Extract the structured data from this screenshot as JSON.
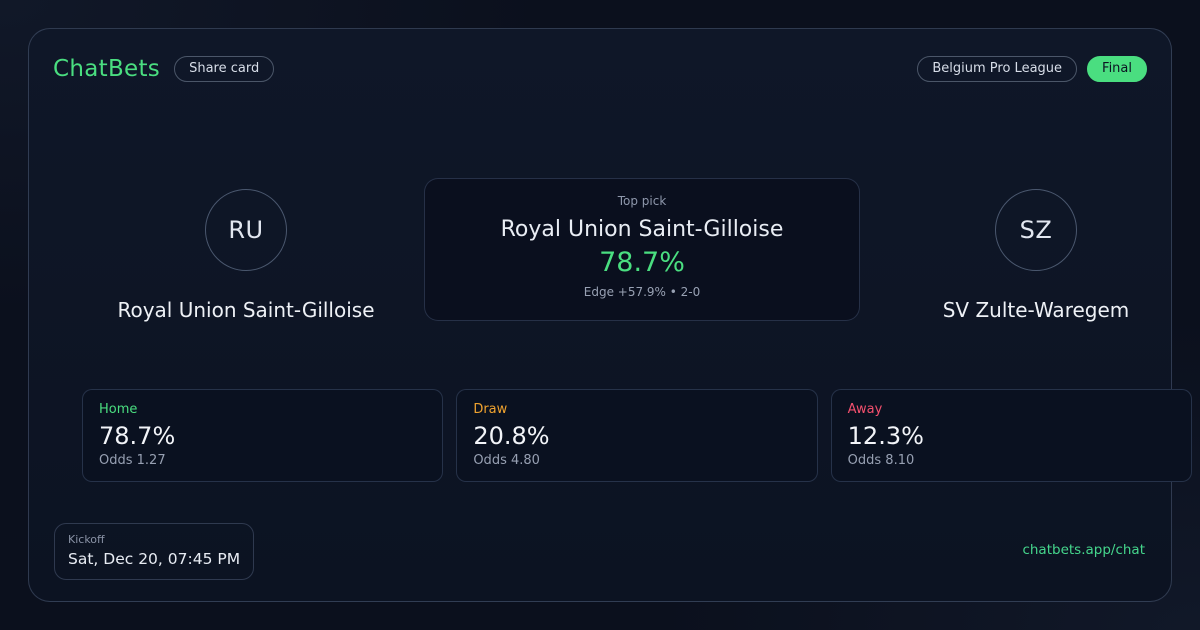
{
  "header": {
    "brand": "ChatBets",
    "share_label": "Share card",
    "league_label": "Belgium Pro League",
    "status_label": "Final"
  },
  "home_team": {
    "initials": "RU",
    "name": "Royal Union Saint-Gilloise"
  },
  "away_team": {
    "initials": "SZ",
    "name": "SV Zulte-Waregem"
  },
  "top_pick": {
    "label": "Top pick",
    "team": "Royal Union Saint-Gilloise",
    "probability": "78.7%",
    "edge": "Edge +57.9% • 2-0"
  },
  "outcomes": [
    {
      "label": "Home",
      "probability": "78.7%",
      "odds": "Odds 1.27",
      "color": "#4ade80"
    },
    {
      "label": "Draw",
      "probability": "20.8%",
      "odds": "Odds 4.80",
      "color": "#f0a32f"
    },
    {
      "label": "Away",
      "probability": "12.3%",
      "odds": "Odds 8.10",
      "color": "#f4506e"
    }
  ],
  "kickoff": {
    "label": "Kickoff",
    "value": "Sat, Dec 20, 07:45 PM"
  },
  "footer": {
    "link": "chatbets.app/chat"
  },
  "colors": {
    "accent_green": "#4ade80",
    "draw_orange": "#f0a32f",
    "away_red": "#f4506e",
    "link_green": "#45d68c",
    "badge_text": "#0c1322",
    "card_background": "#0e1626",
    "page_background": "#0b101d"
  }
}
